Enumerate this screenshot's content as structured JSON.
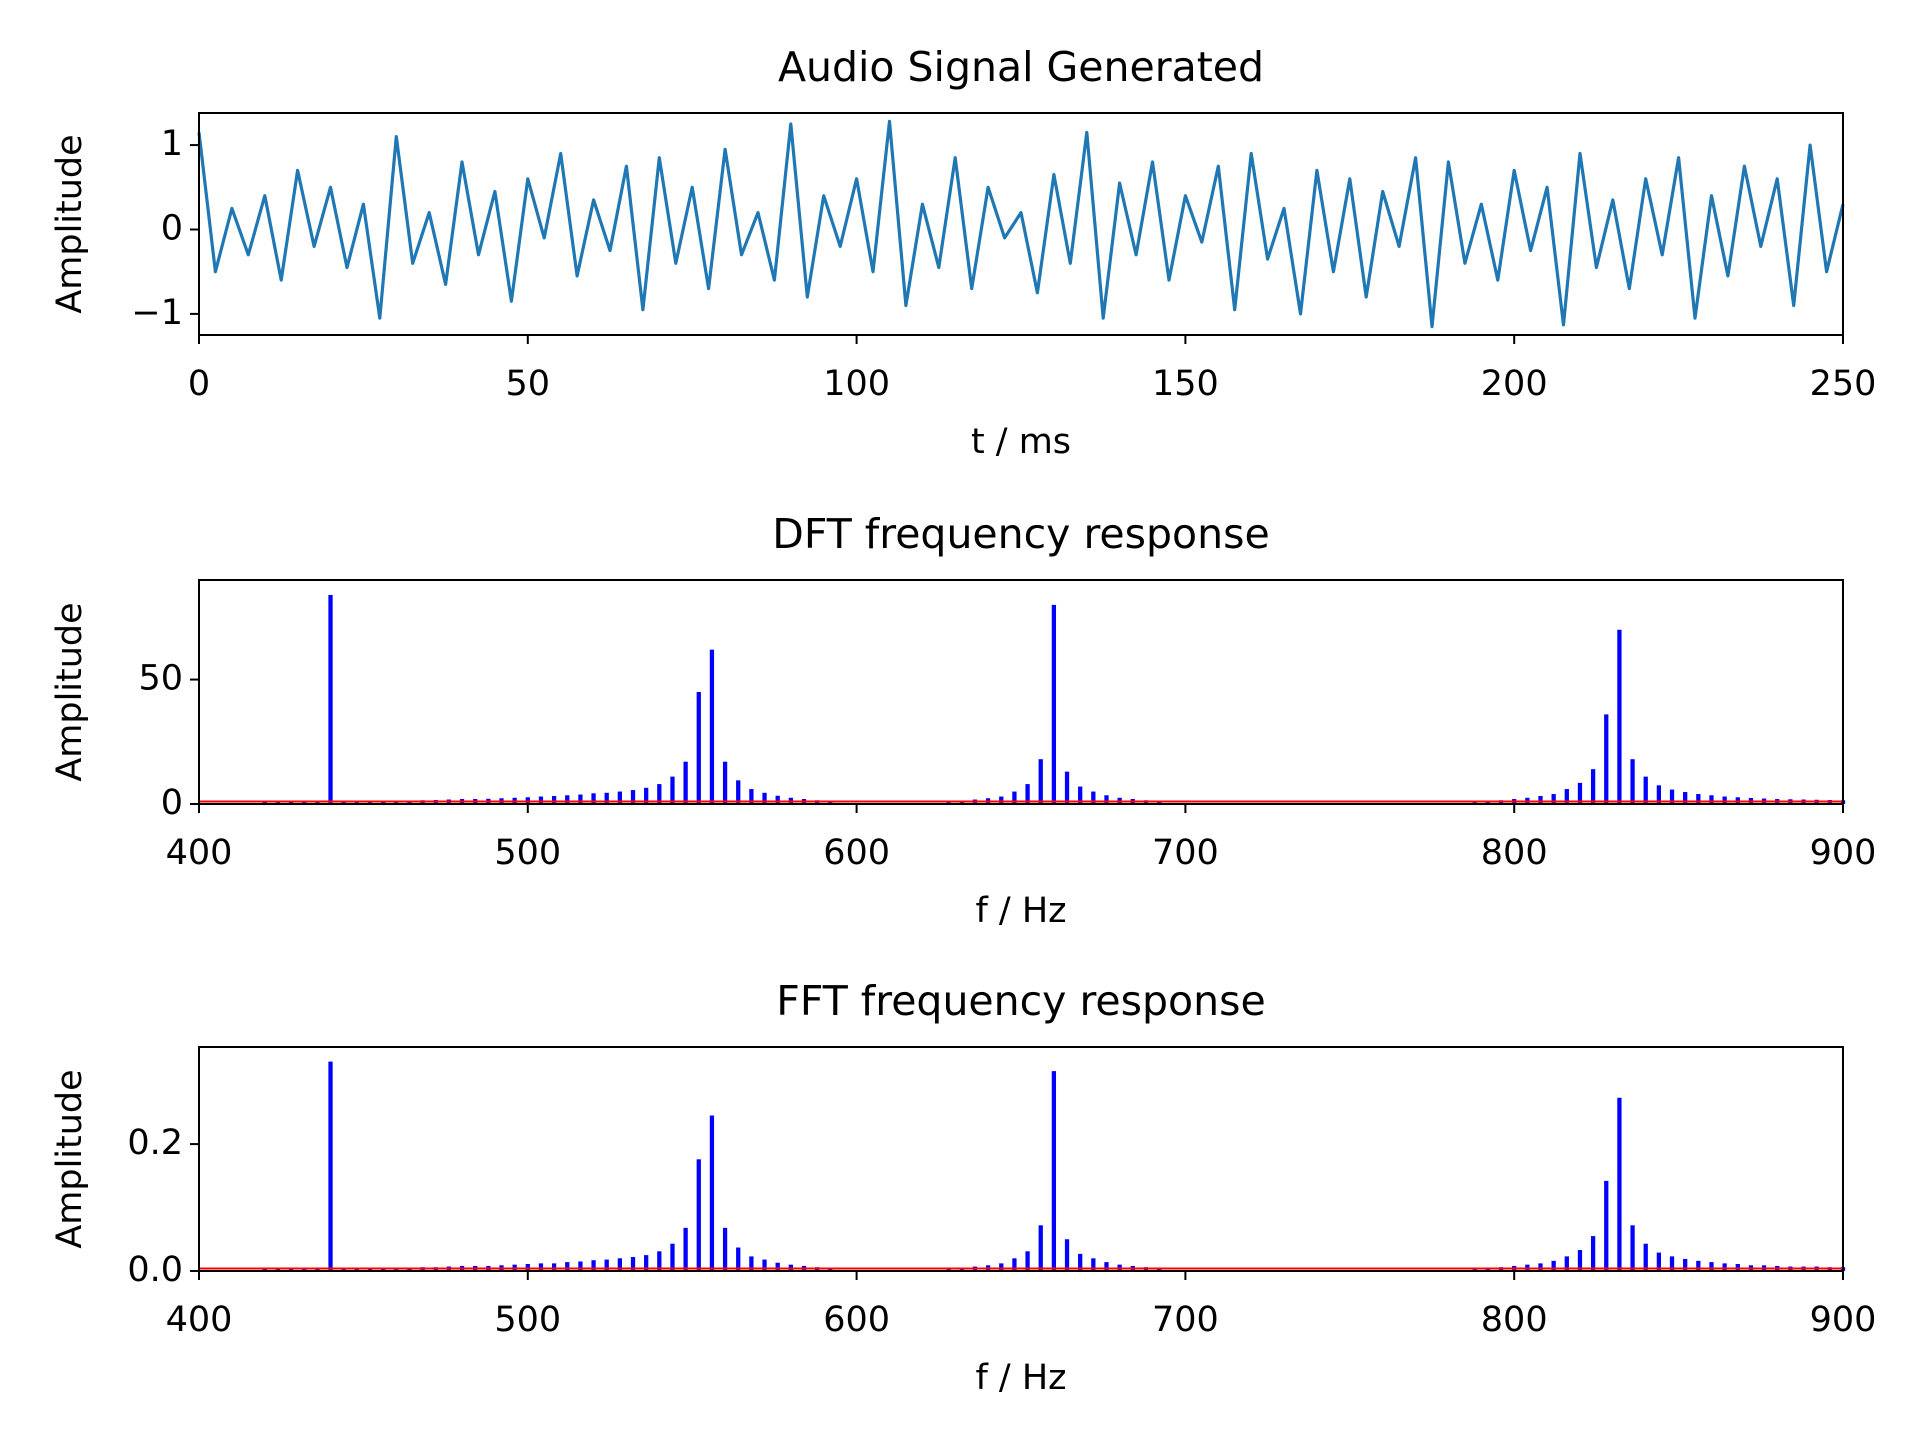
{
  "chart_data": [
    {
      "type": "line",
      "title": "Audio Signal Generated",
      "xlabel": "t / ms",
      "ylabel": "Amplitude",
      "color": "#1f77b4",
      "x": [
        0,
        2.5,
        5,
        7.5,
        10,
        12.5,
        15,
        17.5,
        20,
        22.5,
        25,
        27.5,
        30,
        32.5,
        35,
        37.5,
        40,
        42.5,
        45,
        47.5,
        50,
        52.5,
        55,
        57.5,
        60,
        62.5,
        65,
        67.5,
        70,
        72.5,
        75,
        77.5,
        80,
        82.5,
        85,
        87.5,
        90,
        92.5,
        95,
        97.5,
        100,
        102.5,
        105,
        107.5,
        110,
        112.5,
        115,
        117.5,
        120,
        122.5,
        125,
        127.5,
        130,
        132.5,
        135,
        137.5,
        140,
        142.5,
        145,
        147.5,
        150,
        152.5,
        155,
        157.5,
        160,
        162.5,
        165,
        167.5,
        170,
        172.5,
        175,
        177.5,
        180,
        182.5,
        185,
        187.5,
        190,
        192.5,
        195,
        197.5,
        200,
        202.5,
        205,
        207.5,
        210,
        212.5,
        215,
        217.5,
        220,
        222.5,
        225,
        227.5,
        230,
        232.5,
        235,
        237.5,
        240,
        242.5,
        245,
        247.5,
        250
      ],
      "values": [
        1.15,
        -0.5,
        0.25,
        -0.3,
        0.4,
        -0.6,
        0.7,
        -0.2,
        0.5,
        -0.45,
        0.3,
        -1.05,
        1.1,
        -0.4,
        0.2,
        -0.65,
        0.8,
        -0.3,
        0.45,
        -0.85,
        0.6,
        -0.1,
        0.9,
        -0.55,
        0.35,
        -0.25,
        0.75,
        -0.95,
        0.85,
        -0.4,
        0.5,
        -0.7,
        0.95,
        -0.3,
        0.2,
        -0.6,
        1.25,
        -0.8,
        0.4,
        -0.2,
        0.6,
        -0.5,
        1.28,
        -0.9,
        0.3,
        -0.45,
        0.85,
        -0.7,
        0.5,
        -0.1,
        0.2,
        -0.75,
        0.65,
        -0.4,
        1.15,
        -1.05,
        0.55,
        -0.3,
        0.8,
        -0.6,
        0.4,
        -0.15,
        0.75,
        -0.95,
        0.9,
        -0.35,
        0.25,
        -1.0,
        0.7,
        -0.5,
        0.6,
        -0.8,
        0.45,
        -0.2,
        0.85,
        -1.15,
        0.8,
        -0.4,
        0.3,
        -0.6,
        0.7,
        -0.25,
        0.5,
        -1.13,
        0.9,
        -0.45,
        0.35,
        -0.7,
        0.6,
        -0.3,
        0.85,
        -1.05,
        0.4,
        -0.55,
        0.75,
        -0.2,
        0.6,
        -0.9,
        1.0,
        -0.5,
        0.3
      ],
      "xlim": [
        0,
        250
      ],
      "xticks": [
        0,
        50,
        100,
        150,
        200,
        250
      ],
      "ylim": [
        -1.25,
        1.38
      ],
      "yticks": [
        {
          "value": -1,
          "label": "−1"
        },
        0,
        1
      ]
    },
    {
      "type": "bar",
      "title": "DFT frequency response",
      "xlabel": "f / Hz",
      "ylabel": "Amplitude",
      "color": "#0000ff",
      "x": [
        420,
        424,
        428,
        432,
        436,
        440,
        444,
        448,
        452,
        456,
        460,
        464,
        468,
        472,
        476,
        480,
        484,
        488,
        492,
        496,
        500,
        504,
        508,
        512,
        516,
        520,
        524,
        528,
        532,
        536,
        540,
        544,
        548,
        552,
        556,
        560,
        564,
        568,
        572,
        576,
        580,
        584,
        588,
        592,
        596,
        600,
        604,
        608,
        612,
        616,
        620,
        624,
        628,
        632,
        636,
        640,
        644,
        648,
        652,
        656,
        660,
        664,
        668,
        672,
        676,
        680,
        684,
        688,
        692,
        696,
        700,
        704,
        708,
        712,
        716,
        720,
        724,
        728,
        732,
        736,
        740,
        744,
        748,
        752,
        756,
        760,
        764,
        768,
        772,
        776,
        780,
        784,
        788,
        792,
        796,
        800,
        804,
        808,
        812,
        816,
        820,
        824,
        828,
        832,
        836,
        840,
        844,
        848,
        852,
        856,
        860,
        864,
        868,
        872,
        876,
        880,
        884,
        888,
        892,
        896,
        900
      ],
      "values": [
        1,
        1,
        1,
        1,
        1,
        84,
        1,
        1,
        1,
        1.2,
        1.3,
        1.4,
        1.5,
        1.6,
        1.8,
        2,
        2,
        2.1,
        2.3,
        2.5,
        2.7,
        3,
        3.2,
        3.5,
        3.8,
        4.3,
        4.5,
        5,
        5.6,
        6.5,
        8,
        11,
        17,
        45,
        62,
        17,
        9.5,
        6,
        4.5,
        3.3,
        2.5,
        2,
        1.5,
        1.2,
        0,
        0,
        0,
        0,
        0,
        0,
        0,
        0,
        1,
        1.3,
        1.8,
        2.3,
        3,
        5,
        8,
        18,
        80,
        13,
        7,
        5,
        3.5,
        2.5,
        2,
        1.5,
        1.2,
        0,
        0,
        0,
        0,
        0,
        0,
        0,
        0,
        0,
        0,
        0,
        0,
        0,
        0,
        0,
        0,
        0,
        0,
        0,
        0,
        0,
        0,
        0,
        1,
        1.2,
        1.5,
        2,
        2.5,
        3.2,
        4,
        6,
        8.5,
        14,
        36,
        70,
        18,
        11,
        7.5,
        5.8,
        4.8,
        4,
        3.5,
        3,
        2.7,
        2.4,
        2.2,
        2,
        1.9,
        1.8,
        1.7,
        1.6,
        1.5
      ],
      "hline": 1,
      "hline_color": "#ff0000",
      "xlim": [
        400,
        900
      ],
      "xticks": [
        400,
        500,
        600,
        700,
        800,
        900
      ],
      "ylim": [
        0,
        90
      ],
      "yticks": [
        0,
        50
      ]
    },
    {
      "type": "bar",
      "title": "FFT frequency response",
      "xlabel": "f / Hz",
      "ylabel": "Amplitude",
      "color": "#0000ff",
      "x": [
        420,
        424,
        428,
        432,
        436,
        440,
        444,
        448,
        452,
        456,
        460,
        464,
        468,
        472,
        476,
        480,
        484,
        488,
        492,
        496,
        500,
        504,
        508,
        512,
        516,
        520,
        524,
        528,
        532,
        536,
        540,
        544,
        548,
        552,
        556,
        560,
        564,
        568,
        572,
        576,
        580,
        584,
        588,
        592,
        596,
        600,
        604,
        608,
        612,
        616,
        620,
        624,
        628,
        632,
        636,
        640,
        644,
        648,
        652,
        656,
        660,
        664,
        668,
        672,
        676,
        680,
        684,
        688,
        692,
        696,
        700,
        704,
        708,
        712,
        716,
        720,
        724,
        728,
        732,
        736,
        740,
        744,
        748,
        752,
        756,
        760,
        764,
        768,
        772,
        776,
        780,
        784,
        788,
        792,
        796,
        800,
        804,
        808,
        812,
        816,
        820,
        824,
        828,
        832,
        836,
        840,
        844,
        848,
        852,
        856,
        860,
        864,
        868,
        872,
        876,
        880,
        884,
        888,
        892,
        896,
        900
      ],
      "values": [
        0.004,
        0.004,
        0.004,
        0.004,
        0.004,
        0.33,
        0.004,
        0.004,
        0.004,
        0.005,
        0.005,
        0.005,
        0.006,
        0.006,
        0.007,
        0.008,
        0.008,
        0.008,
        0.009,
        0.01,
        0.011,
        0.012,
        0.012,
        0.014,
        0.015,
        0.017,
        0.018,
        0.02,
        0.022,
        0.025,
        0.031,
        0.043,
        0.068,
        0.176,
        0.245,
        0.068,
        0.037,
        0.023,
        0.018,
        0.013,
        0.01,
        0.008,
        0.006,
        0.005,
        0,
        0,
        0,
        0,
        0,
        0,
        0,
        0,
        0.004,
        0.005,
        0.007,
        0.009,
        0.012,
        0.02,
        0.031,
        0.072,
        0.315,
        0.05,
        0.027,
        0.02,
        0.014,
        0.01,
        0.008,
        0.006,
        0.005,
        0,
        0,
        0,
        0,
        0,
        0,
        0,
        0,
        0,
        0,
        0,
        0,
        0,
        0,
        0,
        0,
        0,
        0,
        0,
        0,
        0,
        0,
        0,
        0.004,
        0.005,
        0.006,
        0.008,
        0.01,
        0.012,
        0.016,
        0.023,
        0.033,
        0.055,
        0.142,
        0.273,
        0.072,
        0.043,
        0.029,
        0.023,
        0.019,
        0.016,
        0.014,
        0.012,
        0.011,
        0.009,
        0.009,
        0.008,
        0.007,
        0.007,
        0.007,
        0.006,
        0.006
      ],
      "hline": 0.004,
      "hline_color": "#ff0000",
      "xlim": [
        400,
        900
      ],
      "xticks": [
        400,
        500,
        600,
        700,
        800,
        900
      ],
      "ylim": [
        0,
        0.353
      ],
      "yticks": [
        {
          "value": 0,
          "label": "0.0"
        },
        0.2
      ]
    }
  ]
}
